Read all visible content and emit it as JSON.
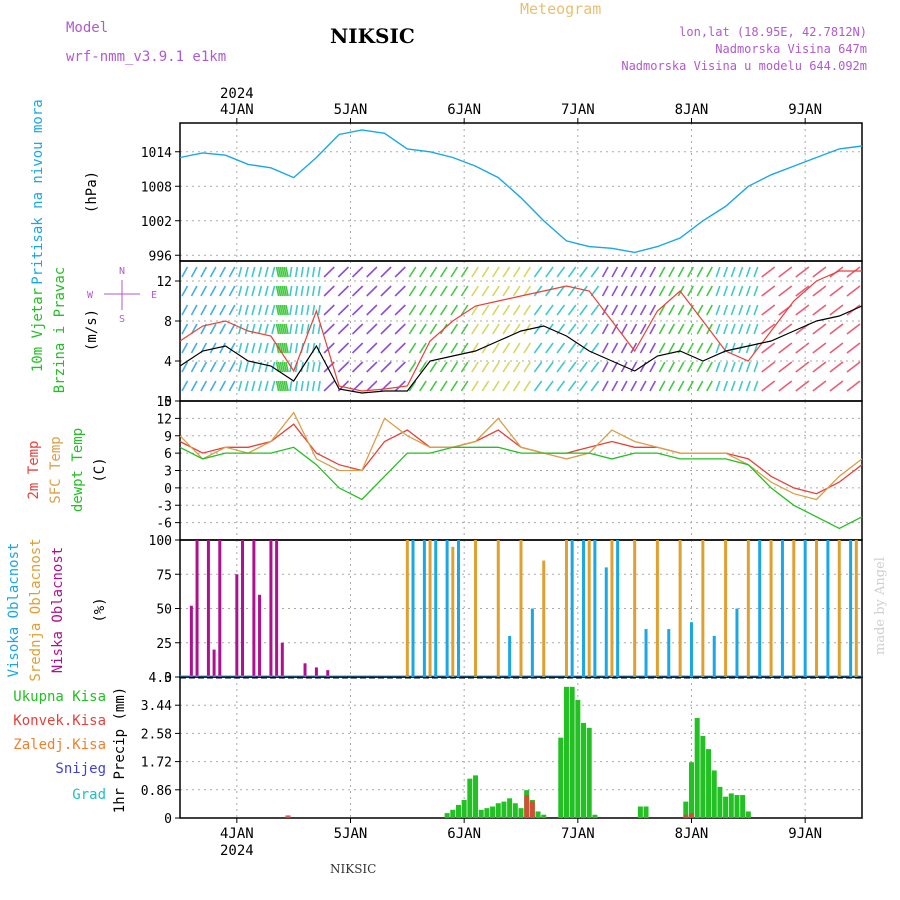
{
  "header": {
    "model_label": "Model",
    "model_name": "wrf-nmm_v3.9.1 e1km",
    "station": "NIKSIC",
    "title": "Meteogram",
    "lonlat": "lon,lat (18.95E, 42.7812N)",
    "elevation": "Nadmorska Visina 647m",
    "model_elevation": "Nadmorska Visina u modelu 644.092m",
    "footer_station": "NIKSIC",
    "credit": "made by Angel"
  },
  "colors": {
    "pressure": "#1aa7e6",
    "wind_speed": "#000000",
    "wind_gust": "#e8403a",
    "t2m": "#e8403a",
    "tsfc": "#d9a04a",
    "dewpoint": "#22c022",
    "high_cloud": "#1aa7e6",
    "mid_cloud": "#e0a030",
    "low_cloud": "#b0108f",
    "precip_total": "#22c022",
    "precip_conv": "#e8403a",
    "precip_frozen": "#f08030",
    "snow": "#4040e0",
    "hail": "#20c0c0",
    "grid": "#aaaaaa"
  },
  "chart_data": [
    {
      "type": "line",
      "panel": "pressure",
      "ylabel_main": "Pritisak na nivou mora",
      "units": "(hPa)",
      "yticks": [
        "1014",
        "1008",
        "1002",
        "996"
      ],
      "ylim": [
        995,
        1019
      ],
      "xlim": [
        -0.5,
        5.5
      ],
      "top_axis": {
        "year": "2024",
        "ticks": [
          "4JAN",
          "5JAN",
          "6JAN",
          "7JAN",
          "8JAN",
          "9JAN"
        ]
      },
      "x": [
        -0.5,
        -0.3,
        -0.1,
        0.1,
        0.3,
        0.5,
        0.7,
        0.9,
        1.1,
        1.3,
        1.5,
        1.7,
        1.9,
        2.1,
        2.3,
        2.5,
        2.7,
        2.9,
        3.1,
        3.3,
        3.5,
        3.7,
        3.9,
        4.1,
        4.3,
        4.5,
        4.7,
        4.9,
        5.1,
        5.3,
        5.5
      ],
      "values": [
        1013,
        1013.8,
        1013.4,
        1011.8,
        1011.2,
        1009.5,
        1013.0,
        1017.0,
        1017.8,
        1017.2,
        1014.5,
        1014.0,
        1013.0,
        1011.5,
        1009.5,
        1006.0,
        1002.0,
        998.5,
        997.5,
        997.2,
        996.5,
        997.5,
        999.0,
        1002.0,
        1004.5,
        1008.0,
        1010.0,
        1011.5,
        1013.0,
        1014.5,
        1015.0
      ]
    },
    {
      "type": "line",
      "panel": "wind",
      "ylabel_main": "10m Vjetar",
      "ylabel_sub": "Brzina i Pravac",
      "units": "(m/s)",
      "compass": {
        "n": "N",
        "s": "S",
        "e": "E",
        "w": "W"
      },
      "yticks": [
        "12",
        "8",
        "4",
        "0"
      ],
      "ylim": [
        0,
        14
      ],
      "xlim": [
        -0.5,
        5.5
      ],
      "x": [
        -0.5,
        -0.3,
        -0.1,
        0.1,
        0.3,
        0.5,
        0.7,
        0.9,
        1.1,
        1.3,
        1.5,
        1.7,
        1.9,
        2.1,
        2.3,
        2.5,
        2.7,
        2.9,
        3.1,
        3.3,
        3.5,
        3.7,
        3.9,
        4.1,
        4.3,
        4.5,
        4.7,
        4.9,
        5.1,
        5.3,
        5.5
      ],
      "series": [
        {
          "role": "speed",
          "values": [
            3.5,
            5.0,
            5.5,
            4.0,
            3.5,
            2.0,
            5.5,
            1.2,
            0.8,
            1.0,
            1.0,
            4.0,
            4.5,
            5.0,
            6.0,
            7.0,
            7.5,
            6.5,
            5.0,
            4.0,
            3.0,
            4.5,
            5.0,
            4.0,
            5.0,
            5.5,
            6.0,
            7.0,
            8.0,
            8.5,
            9.5
          ]
        },
        {
          "role": "gust",
          "values": [
            6.0,
            7.5,
            8.0,
            7.0,
            6.5,
            3.0,
            9.0,
            1.5,
            1.0,
            1.2,
            1.5,
            6.0,
            8.0,
            9.5,
            10.0,
            10.5,
            11.0,
            11.5,
            11.0,
            8.0,
            5.0,
            9.0,
            11.0,
            8.0,
            5.0,
            4.0,
            7.0,
            10.0,
            12.0,
            13.0,
            13.0
          ]
        }
      ]
    },
    {
      "type": "line",
      "panel": "temperature",
      "ylabel_lines": [
        "2m Temp",
        "SFC Temp",
        "dewpt Temp"
      ],
      "units": "(C)",
      "yticks": [
        "15",
        "12",
        "9",
        "6",
        "3",
        "0",
        "-3",
        "-6"
      ],
      "ylim": [
        -9,
        15
      ],
      "xlim": [
        -0.5,
        5.5
      ],
      "x": [
        -0.5,
        -0.3,
        -0.1,
        0.1,
        0.3,
        0.5,
        0.7,
        0.9,
        1.1,
        1.3,
        1.5,
        1.7,
        1.9,
        2.1,
        2.3,
        2.5,
        2.7,
        2.9,
        3.1,
        3.3,
        3.5,
        3.7,
        3.9,
        4.1,
        4.3,
        4.5,
        4.7,
        4.9,
        5.1,
        5.3,
        5.5
      ],
      "series": [
        {
          "name": "2m Temp",
          "values": [
            8,
            6,
            7,
            7,
            8,
            11,
            6,
            4,
            3,
            8,
            10,
            7,
            7,
            8,
            10,
            7,
            6,
            6,
            7,
            8,
            7,
            7,
            6,
            6,
            6,
            5,
            2,
            0,
            -1,
            1,
            4
          ]
        },
        {
          "name": "SFC Temp",
          "values": [
            9,
            5,
            7,
            6,
            8,
            13,
            5,
            3,
            3,
            12,
            9,
            7,
            7,
            8,
            12,
            7,
            6,
            5,
            6,
            10,
            8,
            7,
            6,
            6,
            6,
            4,
            1,
            -1,
            -2,
            2,
            5
          ]
        },
        {
          "name": "dewpt Temp",
          "values": [
            7,
            5,
            6,
            6,
            6,
            7,
            4,
            0,
            -2,
            2,
            6,
            6,
            7,
            7,
            7,
            6,
            6,
            6,
            6,
            5,
            6,
            6,
            5,
            5,
            5,
            4,
            0,
            -3,
            -5,
            -7,
            -5
          ]
        }
      ]
    },
    {
      "type": "bar",
      "panel": "cloud",
      "ylabel_lines": [
        "Visoka Oblacnost",
        "Srednja Oblacnost",
        "Niska Oblacnost"
      ],
      "units": "(%)",
      "yticks": [
        "100",
        "75",
        "50",
        "25",
        "0"
      ],
      "ylim": [
        0,
        100
      ],
      "xlim": [
        -0.5,
        5.5
      ],
      "series": [
        {
          "name": "Niska Oblacnost",
          "x": [
            -0.4,
            -0.35,
            -0.25,
            -0.2,
            -0.15,
            0.0,
            0.05,
            0.15,
            0.2,
            0.3,
            0.35,
            0.4,
            0.6,
            0.7,
            0.8
          ],
          "values": [
            52,
            100,
            100,
            20,
            100,
            75,
            100,
            100,
            60,
            100,
            100,
            25,
            10,
            7,
            5
          ]
        },
        {
          "name": "Srednja Oblacnost",
          "x": [
            1.5,
            1.7,
            1.9,
            2.1,
            2.3,
            2.5,
            2.7,
            2.9,
            3.1,
            3.3,
            3.5,
            3.7,
            3.9,
            4.1,
            4.3,
            4.5,
            4.7,
            4.9,
            5.1,
            5.3,
            5.45
          ],
          "values": [
            100,
            100,
            95,
            100,
            100,
            100,
            85,
            100,
            100,
            100,
            100,
            100,
            100,
            100,
            100,
            100,
            100,
            100,
            100,
            100,
            100
          ]
        },
        {
          "name": "Visoka Oblacnost",
          "x": [
            1.55,
            1.65,
            1.75,
            1.85,
            1.95,
            2.4,
            2.6,
            2.95,
            3.05,
            3.15,
            3.25,
            3.35,
            3.6,
            3.8,
            4.0,
            4.2,
            4.4,
            4.6,
            4.8,
            5.0,
            5.2,
            5.4
          ],
          "values": [
            100,
            100,
            100,
            100,
            100,
            30,
            50,
            100,
            100,
            100,
            80,
            100,
            35,
            35,
            40,
            30,
            50,
            100,
            100,
            100,
            100,
            100
          ]
        }
      ]
    },
    {
      "type": "bar",
      "panel": "precip",
      "legend": [
        "Ukupna Kisa",
        "Konvek.Kisa",
        "Zaledj.Kisa",
        "Snijeg",
        "Grad"
      ],
      "ylabel": "1hr Precip (mm)",
      "yticks": [
        "4.3",
        "3.44",
        "2.58",
        "1.72",
        "0.86",
        "0"
      ],
      "ylim": [
        0,
        4.3
      ],
      "xlim": [
        -0.5,
        5.5
      ],
      "bottom_axis": {
        "ticks": [
          "4JAN",
          "5JAN",
          "6JAN",
          "7JAN",
          "8JAN",
          "9JAN"
        ],
        "year": "2024"
      },
      "series": [
        {
          "name": "Ukupna Kisa",
          "x": [
            1.85,
            1.9,
            1.95,
            2.0,
            2.05,
            2.1,
            2.15,
            2.2,
            2.25,
            2.3,
            2.35,
            2.4,
            2.45,
            2.5,
            2.55,
            2.6,
            2.65,
            2.7,
            2.85,
            2.9,
            2.95,
            3.0,
            3.05,
            3.1,
            3.15,
            3.55,
            3.6,
            3.95,
            4.0,
            4.05,
            4.1,
            4.15,
            4.2,
            4.25,
            4.3,
            4.35,
            4.4,
            4.45,
            4.5
          ],
          "values": [
            0.15,
            0.25,
            0.4,
            0.55,
            1.2,
            1.3,
            0.25,
            0.3,
            0.35,
            0.45,
            0.5,
            0.6,
            0.45,
            0.3,
            0.85,
            0.55,
            0.2,
            0.1,
            2.45,
            4.0,
            4.0,
            3.6,
            2.9,
            2.75,
            0.1,
            0.35,
            0.35,
            0.5,
            1.7,
            3.05,
            2.5,
            2.1,
            1.45,
            0.95,
            0.65,
            0.75,
            0.7,
            0.7,
            0.2
          ]
        },
        {
          "name": "Konvek.Kisa",
          "x": [
            0.45,
            2.55,
            2.6,
            3.95,
            4.0
          ],
          "values": [
            0.08,
            0.7,
            0.5,
            0.1,
            0.15
          ]
        }
      ]
    }
  ]
}
